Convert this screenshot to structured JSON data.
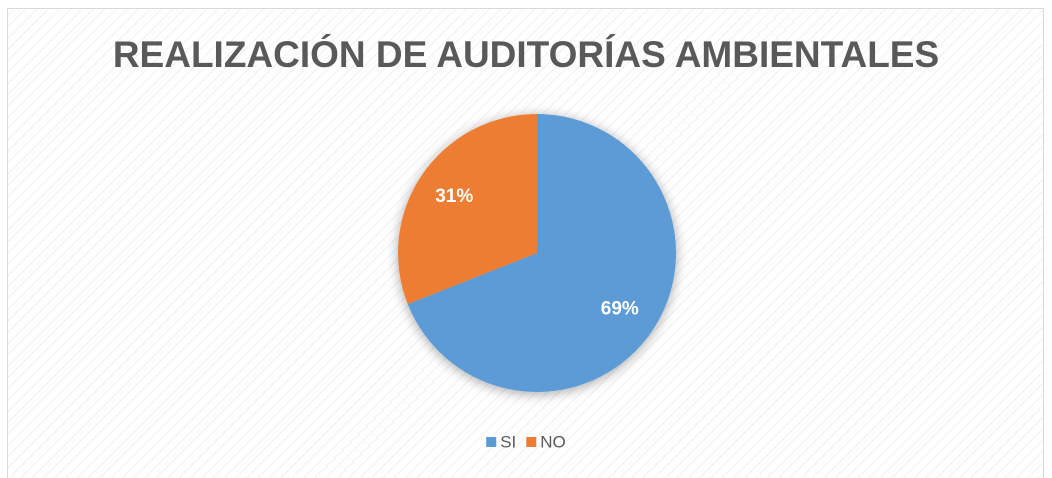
{
  "chart_data": {
    "type": "pie",
    "title": "REALIZACIÓN DE AUDITORÍAS AMBIENTALES",
    "categories": [
      "SI",
      "NO"
    ],
    "values": [
      69,
      31
    ],
    "value_labels": [
      "69%",
      "31%"
    ],
    "colors": [
      "#5b9bd5",
      "#ed7d31"
    ],
    "legend": "bottom"
  }
}
